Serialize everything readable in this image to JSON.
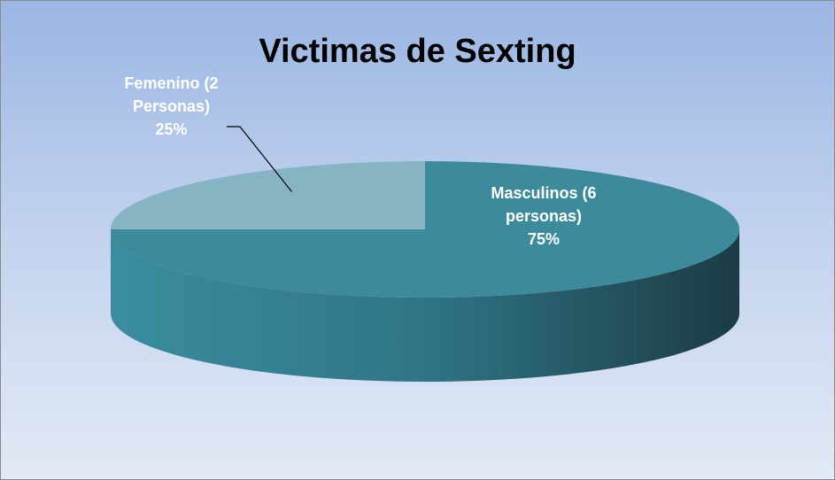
{
  "chart_data": {
    "type": "pie",
    "title": "Victimas de Sexting",
    "categories": [
      "Masculinos (6 personas)",
      "Femenino (2 Personas)"
    ],
    "values": [
      75,
      25
    ],
    "value_labels": [
      "75%",
      "25%"
    ],
    "colors": [
      "#3d8a9c",
      "#86b4c3"
    ]
  }
}
